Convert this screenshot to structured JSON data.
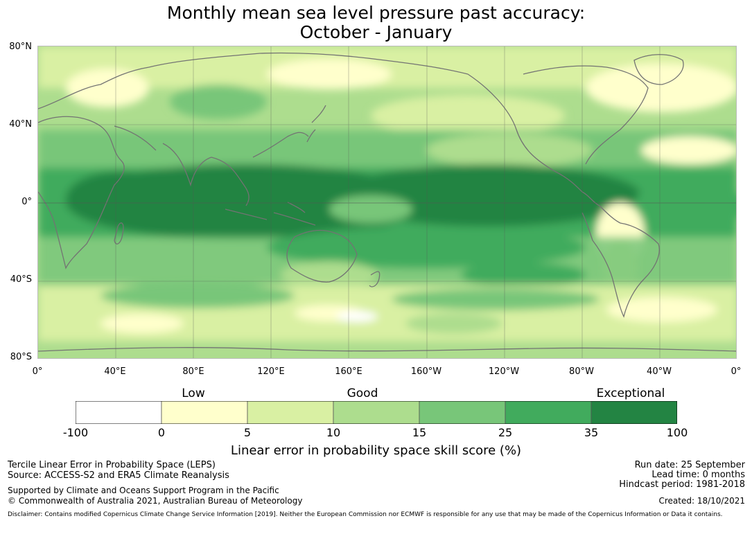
{
  "title": {
    "line1": "Monthly mean sea level pressure past accuracy:",
    "line2": "October - January"
  },
  "map": {
    "lat_labels": [
      "80°N",
      "40°N",
      "0°",
      "40°S",
      "80°S"
    ],
    "lon_labels": [
      "0°",
      "40°E",
      "80°E",
      "120°E",
      "160°E",
      "160°W",
      "120°W",
      "80°W",
      "40°W",
      "0°"
    ],
    "coastline_color": "#737373",
    "grid_color": "#555555"
  },
  "legend": {
    "categories": [
      "Low",
      "Good",
      "Exceptional"
    ],
    "ticks": [
      "-100",
      "0",
      "5",
      "10",
      "15",
      "25",
      "35",
      "100"
    ],
    "colors": [
      "#ffffff",
      "#ffffcc",
      "#d9f0a3",
      "#addd8e",
      "#78c679",
      "#41ab5d",
      "#238443"
    ],
    "xlabel": "Linear error in probability space skill score (%)"
  },
  "footer": {
    "left": {
      "line1": "Tercile Linear Error in Probability Space (LEPS)",
      "line2": "Source: ACCESS-S2 and ERA5 Climate Reanalysis",
      "line3": "Supported by Climate and Oceans Support Program in the Pacific",
      "line4": "© Commonwealth of Australia 2021, Australian Bureau of Meteorology"
    },
    "right": {
      "run_date": "Run date: 25 September",
      "lead_time": "Lead time: 0 months",
      "hindcast": "Hindcast period: 1981-2018",
      "created": "Created: 18/10/2021"
    },
    "disclaimer": "Disclaimer: Contains modified Copernicus Climate Change Service Information [2019]. Neither the European Commission nor ECMWF is responsible for any use that may be made of the Copernicus Information or Data it contains."
  }
}
